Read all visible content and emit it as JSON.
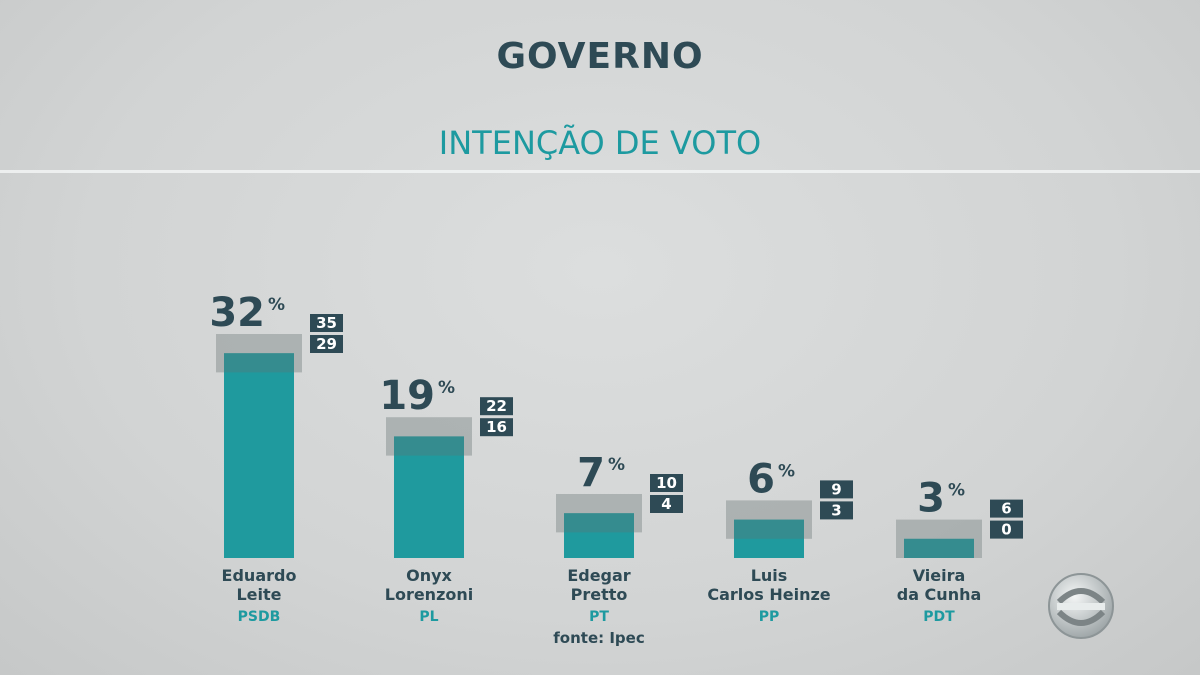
{
  "header": {
    "title": "GOVERNO",
    "subtitle": "INTENÇÃO DE VOTO"
  },
  "source": "fonte: Ipec",
  "colors": {
    "bar": "#1f9a9e",
    "margin_band": "#8a9494",
    "badge_bg": "#2e4a55",
    "badge_text": "#ffffff",
    "value_text": "#2e4a55",
    "name_text": "#2e4a55",
    "party_text": "#1d9aa0"
  },
  "chart_data": {
    "type": "bar",
    "categories": [
      "Eduardo Leite",
      "Onyx Lorenzoni",
      "Edegar Pretto",
      "Luis Carlos Heinze",
      "Vieira da Cunha"
    ],
    "name_lines": [
      [
        "Eduardo",
        "Leite"
      ],
      [
        "Onyx",
        "Lorenzoni"
      ],
      [
        "Edegar",
        "Pretto"
      ],
      [
        "Luis",
        "Carlos Heinze"
      ],
      [
        "Vieira",
        "da Cunha"
      ]
    ],
    "parties": [
      "PSDB",
      "PL",
      "PT",
      "PP",
      "PDT"
    ],
    "values": [
      32,
      19,
      7,
      6,
      3
    ],
    "value_unit": "%",
    "upper": [
      35,
      22,
      10,
      9,
      6
    ],
    "lower": [
      29,
      16,
      4,
      3,
      0
    ],
    "title": "GOVERNO",
    "subtitle": "INTENÇÃO DE VOTO",
    "xlabel": "",
    "ylabel": "",
    "grid": false,
    "legend": "none"
  }
}
